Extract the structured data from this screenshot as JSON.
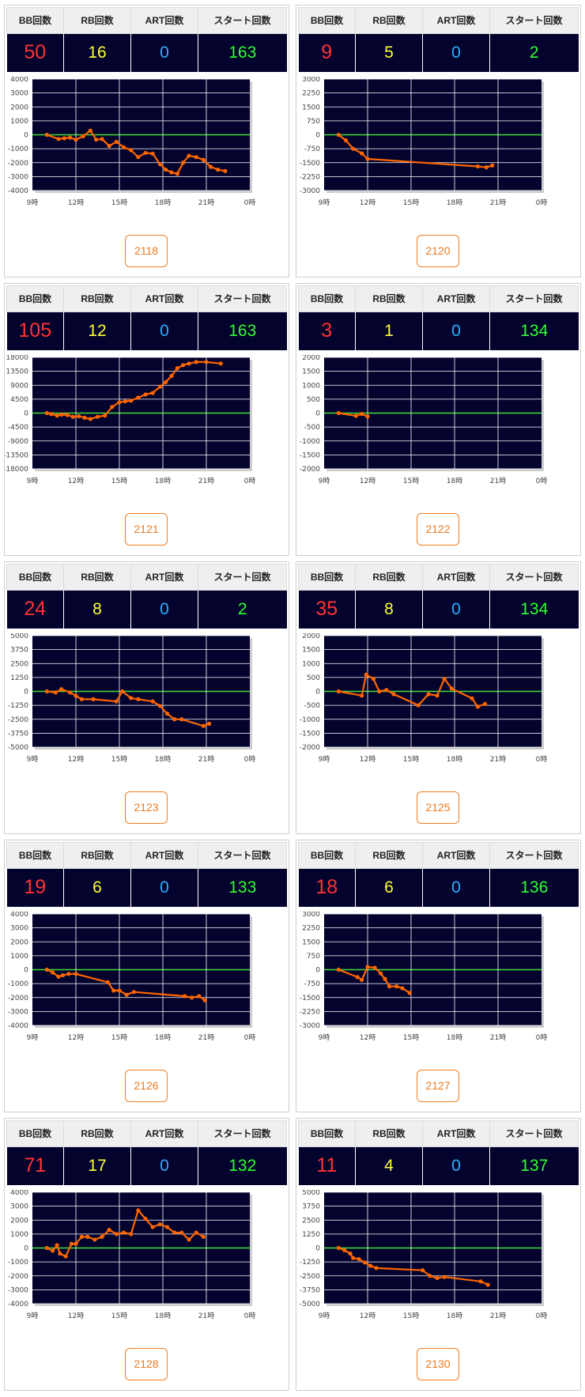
{
  "labels": {
    "bb": "BB回数",
    "rb": "RB回数",
    "art": "ART回数",
    "start": "スタート回数"
  },
  "x_tick_labels": [
    "9時",
    "12時",
    "15時",
    "18時",
    "21時",
    "0時"
  ],
  "colors": {
    "bb_value": "#ff3333",
    "rb_value": "#ffff33",
    "art_value": "#2ab0ff",
    "start_value": "#33ff33",
    "chart_bg": "#03032e",
    "zero_line": "#44dd33",
    "series_line": "#ff6600",
    "button_border": "#f07d22"
  },
  "machines": [
    {
      "id": "2118",
      "bb": "50",
      "rb": "16",
      "art": "0",
      "start": "163"
    },
    {
      "id": "2120",
      "bb": "9",
      "rb": "5",
      "art": "0",
      "start": "2"
    },
    {
      "id": "2121",
      "bb": "105",
      "rb": "12",
      "art": "0",
      "start": "163"
    },
    {
      "id": "2122",
      "bb": "3",
      "rb": "1",
      "art": "0",
      "start": "134"
    },
    {
      "id": "2123",
      "bb": "24",
      "rb": "8",
      "art": "0",
      "start": "2"
    },
    {
      "id": "2125",
      "bb": "35",
      "rb": "8",
      "art": "0",
      "start": "134"
    },
    {
      "id": "2126",
      "bb": "19",
      "rb": "6",
      "art": "0",
      "start": "133"
    },
    {
      "id": "2127",
      "bb": "18",
      "rb": "6",
      "art": "0",
      "start": "136"
    },
    {
      "id": "2128",
      "bb": "71",
      "rb": "17",
      "art": "0",
      "start": "132"
    },
    {
      "id": "2130",
      "bb": "11",
      "rb": "4",
      "art": "0",
      "start": "137"
    }
  ],
  "chart_data": [
    {
      "type": "line",
      "machine": "2118",
      "xlim": [
        9,
        24
      ],
      "ylim": [
        -4000,
        4000
      ],
      "y_ticks": [
        "4000",
        "3000",
        "2000",
        "1000",
        "0",
        "-1000",
        "-2000",
        "-3000",
        "-4000"
      ],
      "x": [
        10.0,
        10.8,
        11.2,
        11.6,
        12.0,
        12.5,
        13.0,
        13.4,
        13.8,
        14.3,
        14.8,
        15.3,
        15.8,
        16.3,
        16.8,
        17.3,
        17.8,
        18.2,
        18.6,
        19.0,
        19.4,
        19.8,
        20.3,
        20.8,
        21.3,
        21.8,
        22.3
      ],
      "y": [
        0,
        -300,
        -250,
        -200,
        -350,
        -100,
        300,
        -350,
        -300,
        -800,
        -500,
        -900,
        -1100,
        -1600,
        -1300,
        -1350,
        -2100,
        -2500,
        -2700,
        -2800,
        -2000,
        -1500,
        -1600,
        -1800,
        -2300,
        -2500,
        -2600
      ]
    },
    {
      "type": "line",
      "machine": "2120",
      "xlim": [
        9,
        24
      ],
      "ylim": [
        -3000,
        3000
      ],
      "y_ticks": [
        "3000",
        "2250",
        "1500",
        "750",
        "0",
        "-750",
        "-1500",
        "-2250",
        "-3000"
      ],
      "x": [
        10.0,
        10.5,
        11.0,
        11.6,
        12.0,
        19.6,
        20.2,
        20.6
      ],
      "y": [
        0,
        -300,
        -750,
        -1000,
        -1300,
        -1700,
        -1750,
        -1650
      ]
    },
    {
      "type": "line",
      "machine": "2121",
      "xlim": [
        9,
        24
      ],
      "ylim": [
        -18000,
        18000
      ],
      "y_ticks": [
        "18000",
        "13500",
        "9000",
        "4500",
        "0",
        "-4500",
        "-9000",
        "-13500",
        "-18000"
      ],
      "x": [
        10.0,
        10.3,
        10.7,
        11.0,
        11.4,
        11.8,
        12.2,
        12.6,
        13.0,
        13.5,
        14.0,
        14.5,
        15.0,
        15.4,
        15.8,
        16.3,
        16.8,
        17.3,
        17.8,
        18.2,
        18.6,
        19.0,
        19.4,
        19.8,
        20.3,
        21.0,
        22.0
      ],
      "y": [
        0,
        -300,
        -800,
        -500,
        -600,
        -1200,
        -1000,
        -1500,
        -1900,
        -1200,
        -800,
        2000,
        3500,
        3800,
        4000,
        5000,
        6000,
        6500,
        8500,
        10000,
        12000,
        14500,
        15500,
        16000,
        16500,
        16500,
        16000
      ]
    },
    {
      "type": "line",
      "machine": "2122",
      "xlim": [
        9,
        24
      ],
      "ylim": [
        -2000,
        2000
      ],
      "y_ticks": [
        "2000",
        "1500",
        "1000",
        "500",
        "0",
        "-500",
        "-1000",
        "-1500",
        "-2000"
      ],
      "x": [
        10.0,
        11.2,
        11.6,
        12.0
      ],
      "y": [
        0,
        -100,
        -30,
        -120
      ]
    },
    {
      "type": "line",
      "machine": "2123",
      "xlim": [
        9,
        24
      ],
      "ylim": [
        -5000,
        5000
      ],
      "y_ticks": [
        "5000",
        "3750",
        "2500",
        "1250",
        "0",
        "-1250",
        "-2500",
        "-3750",
        "-5000"
      ],
      "x": [
        10.0,
        10.6,
        11.0,
        11.6,
        12.0,
        12.4,
        13.2,
        14.8,
        15.2,
        15.8,
        16.3,
        17.3,
        17.8,
        18.3,
        18.8,
        19.3,
        20.8,
        21.2
      ],
      "y": [
        0,
        -100,
        200,
        -100,
        -400,
        -700,
        -700,
        -900,
        0,
        -600,
        -700,
        -900,
        -1300,
        -2000,
        -2500,
        -2500,
        -3100,
        -2900
      ]
    },
    {
      "type": "line",
      "machine": "2125",
      "xlim": [
        9,
        24
      ],
      "ylim": [
        -2000,
        2000
      ],
      "y_ticks": [
        "2000",
        "1500",
        "1000",
        "500",
        "0",
        "-500",
        "-1000",
        "-1500",
        "-2000"
      ],
      "x": [
        10.0,
        11.6,
        11.9,
        12.4,
        12.8,
        13.3,
        13.8,
        15.5,
        16.2,
        16.8,
        17.3,
        17.8,
        19.2,
        19.6,
        20.1
      ],
      "y": [
        0,
        -150,
        600,
        450,
        0,
        50,
        -100,
        -500,
        -100,
        -150,
        450,
        100,
        -250,
        -550,
        -450
      ]
    },
    {
      "type": "line",
      "machine": "2126",
      "xlim": [
        9,
        24
      ],
      "ylim": [
        -4000,
        4000
      ],
      "y_ticks": [
        "4000",
        "3000",
        "2000",
        "1000",
        "0",
        "-1000",
        "-2000",
        "-3000",
        "-4000"
      ],
      "x": [
        10.0,
        10.4,
        10.8,
        11.1,
        11.5,
        12.0,
        14.2,
        14.6,
        15.0,
        15.5,
        16.0,
        19.5,
        20.0,
        20.5,
        20.9
      ],
      "y": [
        0,
        -200,
        -500,
        -400,
        -300,
        -300,
        -900,
        -1500,
        -1500,
        -1800,
        -1600,
        -1900,
        -2000,
        -1900,
        -2200
      ]
    },
    {
      "type": "line",
      "machine": "2127",
      "xlim": [
        9,
        24
      ],
      "ylim": [
        -3000,
        3000
      ],
      "y_ticks": [
        "3000",
        "2250",
        "1500",
        "750",
        "0",
        "-750",
        "-1500",
        "-2250",
        "-3000"
      ],
      "x": [
        10.0,
        11.3,
        11.6,
        12.0,
        12.5,
        12.9,
        13.2,
        13.5,
        14.0,
        14.4,
        14.9
      ],
      "y": [
        0,
        -400,
        -550,
        150,
        100,
        -200,
        -500,
        -900,
        -900,
        -1000,
        -1250
      ]
    },
    {
      "type": "line",
      "machine": "2128",
      "xlim": [
        9,
        24
      ],
      "ylim": [
        -4000,
        4000
      ],
      "y_ticks": [
        "4000",
        "3000",
        "2000",
        "1000",
        "0",
        "-1000",
        "-2000",
        "-3000",
        "-4000"
      ],
      "x": [
        10.0,
        10.4,
        10.7,
        10.9,
        11.3,
        11.7,
        12.0,
        12.4,
        12.8,
        13.3,
        13.8,
        14.3,
        14.8,
        15.3,
        15.8,
        16.3,
        16.8,
        17.3,
        17.8,
        18.3,
        18.8,
        19.3,
        19.8,
        20.3,
        20.8
      ],
      "y": [
        0,
        -200,
        200,
        -400,
        -600,
        300,
        300,
        800,
        800,
        600,
        800,
        1300,
        1000,
        1100,
        1000,
        2700,
        2100,
        1500,
        1700,
        1500,
        1100,
        1100,
        600,
        1100,
        800
      ]
    },
    {
      "type": "line",
      "machine": "2130",
      "xlim": [
        9,
        24
      ],
      "ylim": [
        -5000,
        5000
      ],
      "y_ticks": [
        "5000",
        "3750",
        "2500",
        "1250",
        "0",
        "-1250",
        "-2500",
        "-3750",
        "-5000"
      ],
      "x": [
        10.0,
        10.4,
        10.8,
        11.0,
        11.4,
        11.8,
        12.2,
        12.6,
        15.8,
        16.3,
        16.8,
        17.3,
        19.8,
        20.3
      ],
      "y": [
        0,
        -200,
        -500,
        -900,
        -1000,
        -1300,
        -1600,
        -1800,
        -2000,
        -2500,
        -2700,
        -2600,
        -3000,
        -3300
      ]
    }
  ]
}
